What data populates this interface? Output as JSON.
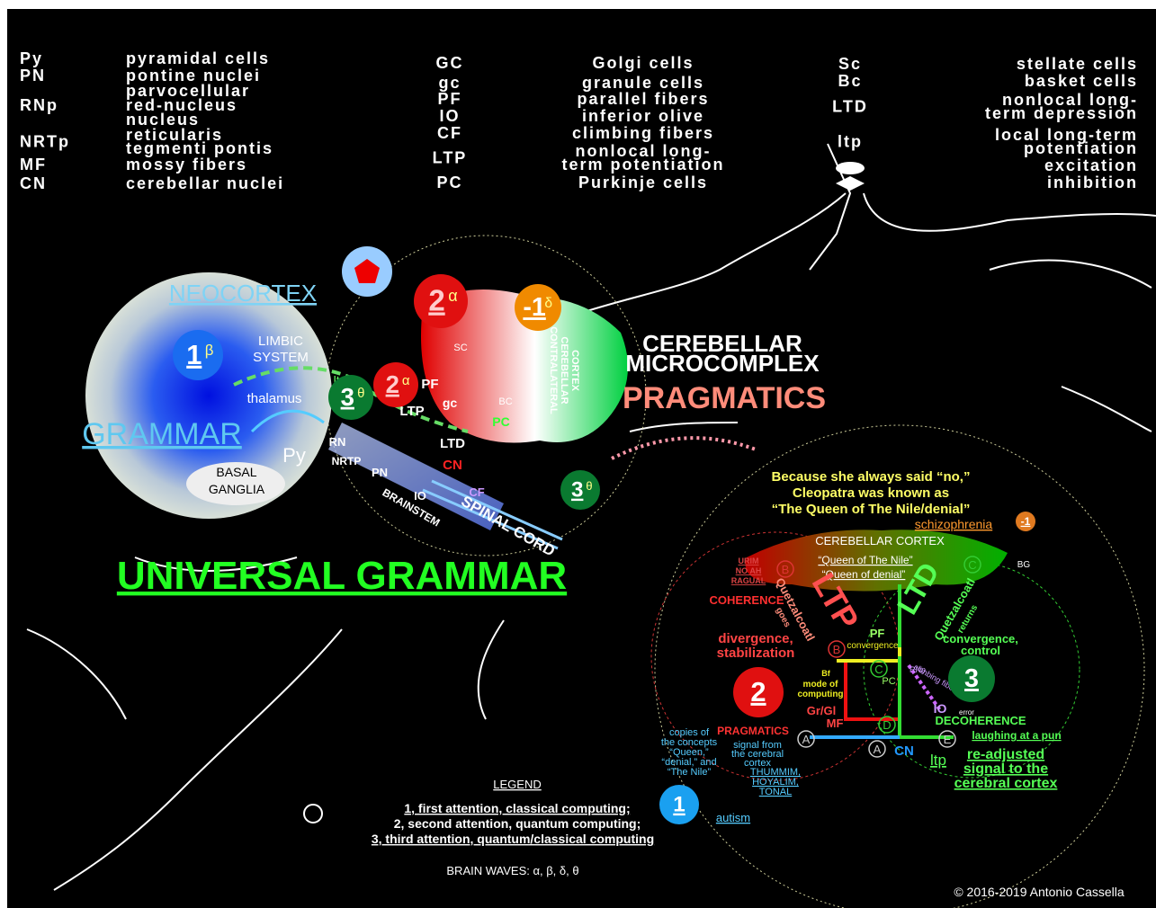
{
  "abbreviations": [
    [
      {
        "abbr": "Py",
        "meaning": [
          "pyramidal cells"
        ]
      },
      {
        "abbr": "PN",
        "meaning": [
          "pontine nuclei"
        ]
      },
      {
        "abbr": "RNp",
        "meaning": [
          "parvocellular",
          "red-nucleus",
          "nucleus"
        ]
      },
      {
        "abbr": "NRTp",
        "meaning": [
          "reticularis",
          "tegmenti pontis"
        ]
      },
      {
        "abbr": "MF",
        "meaning": [
          "mossy fibers"
        ]
      },
      {
        "abbr": "CN",
        "meaning": [
          "cerebellar nuclei"
        ]
      }
    ],
    [
      {
        "abbr": "GC",
        "meaning": [
          "Golgi cells"
        ]
      },
      {
        "abbr": "gc",
        "meaning": [
          "granule cells"
        ]
      },
      {
        "abbr": "PF",
        "meaning": [
          "parallel fibers"
        ]
      },
      {
        "abbr": "IO",
        "meaning": [
          "inferior olive"
        ]
      },
      {
        "abbr": "CF",
        "meaning": [
          "climbing fibers"
        ]
      },
      {
        "abbr": "LTP",
        "meaning": [
          "nonlocal long-",
          "term potentiation"
        ]
      },
      {
        "abbr": "PC",
        "meaning": [
          "Purkinje cells"
        ]
      }
    ],
    [
      {
        "abbr": "Sc",
        "meaning": [
          "stellate cells"
        ]
      },
      {
        "abbr": "Bc",
        "meaning": [
          "basket cells"
        ]
      },
      {
        "abbr": "LTD",
        "meaning": [
          "nonlocal long-",
          "term depression"
        ]
      },
      {
        "abbr": "ltp",
        "meaning": [
          "local long-term",
          "potentiation"
        ]
      },
      {
        "abbr": "",
        "meaning": [
          "excitation"
        ]
      },
      {
        "abbr": "",
        "meaning": [
          "inhibition"
        ]
      }
    ]
  ],
  "left": {
    "neocortex": "NEOCORTEX",
    "limbic": [
      "LIMBIC",
      "SYSTEM"
    ],
    "thalamus": "thalamus",
    "grammar": "GRAMMAR",
    "py": "Py",
    "basal": [
      "BASAL",
      "GANGLIA"
    ],
    "ltp": "ltp",
    "pf": "PF",
    "ltp_upper": "LTP",
    "gc": "gc",
    "sc": "SC",
    "bc": "BC",
    "pc": "PC",
    "ltd": "LTD",
    "cn": "CN",
    "rn": "RN",
    "nrtp": "NRTP",
    "pn": "PN",
    "io": "IO",
    "cf": "CF",
    "brainstem": "BRAINSTEM",
    "spinal": "SPINAL CORD",
    "contralateral": [
      "CONTRALATERAL",
      "CEREBELLAR",
      "CORTEX"
    ],
    "microcomplex": [
      "CEREBELLAR",
      "MICROCOMPLEX"
    ],
    "pragmatics": "PRAGMATICS",
    "universal": "UNIVERSAL GRAMMAR",
    "badges": [
      {
        "number": "1",
        "wave": "β"
      },
      {
        "number": "2",
        "wave": "α"
      },
      {
        "number": "-1",
        "wave": "δ"
      },
      {
        "number": "2",
        "wave": "α"
      },
      {
        "number": "3",
        "wave": "θ"
      },
      {
        "number": "3",
        "wave": "θ"
      }
    ]
  },
  "right": {
    "quote": [
      "Because she always said “no,”",
      "Cleopatra was known as",
      "“The Queen of The Nile/denial”"
    ],
    "schizophrenia": "schizophrenia",
    "cortex": "CEREBELLAR CORTEX",
    "queen1": "“Queen of The Nile”",
    "queen2": "“Queen of denial”",
    "urim": [
      "URIM",
      "NO AH",
      "RAGUAL"
    ],
    "coherence": "COHERENCE",
    "quetz_goes": [
      "Quetzalcoatl",
      "goes"
    ],
    "ltp": "LTP",
    "ltd": "LTD",
    "quetz_returns": [
      "Quetzalcoatl",
      "returns"
    ],
    "divergence": [
      "divergence,",
      "stabilization"
    ],
    "convergence": [
      "convergence,",
      "control"
    ],
    "pf": "PF",
    "pf_conv": "convergence",
    "bg": "BG",
    "mode": [
      "Bf",
      "mode of",
      "computing"
    ],
    "grgl": "Gr/Gl",
    "mf": "MF",
    "pc": "PC",
    "rnp": "RNp",
    "climbing": "climbing fibers",
    "io": "IO",
    "error": "error",
    "decoherence": "DECOHERENCE",
    "laughing": "laughing at a pun",
    "pragmatics": "PRAGMATICS",
    "copies": [
      "copies of",
      "the concepts",
      "“Queen,”",
      "“denial,” and",
      "“The Nile”"
    ],
    "signal": [
      "signal from",
      "the cerebral",
      "cortex"
    ],
    "cn": "CN",
    "ltp_local": "ltp",
    "readjusted": [
      "re-adjusted",
      "signal to the",
      "cerebral cortex"
    ],
    "thummim": [
      "THUMMIM,",
      "HOYALIM,",
      "TONAL"
    ],
    "autism": "autism",
    "letters": [
      "B",
      "C",
      "B",
      "C",
      "D",
      "A",
      "A",
      "E"
    ],
    "badges": [
      {
        "number": "-1"
      },
      {
        "number": "2"
      },
      {
        "number": "3"
      },
      {
        "number": "1"
      }
    ]
  },
  "legend": {
    "title": "LEGEND",
    "items": [
      "1, first attention, classical computing;",
      "2, second attention, quantum computing;",
      "3, third attention, quantum/classical computing"
    ],
    "brain_waves": "BRAIN WAVES:  α, β, δ, θ"
  },
  "copyright": "© 2016-2019  Antonio Cassella"
}
